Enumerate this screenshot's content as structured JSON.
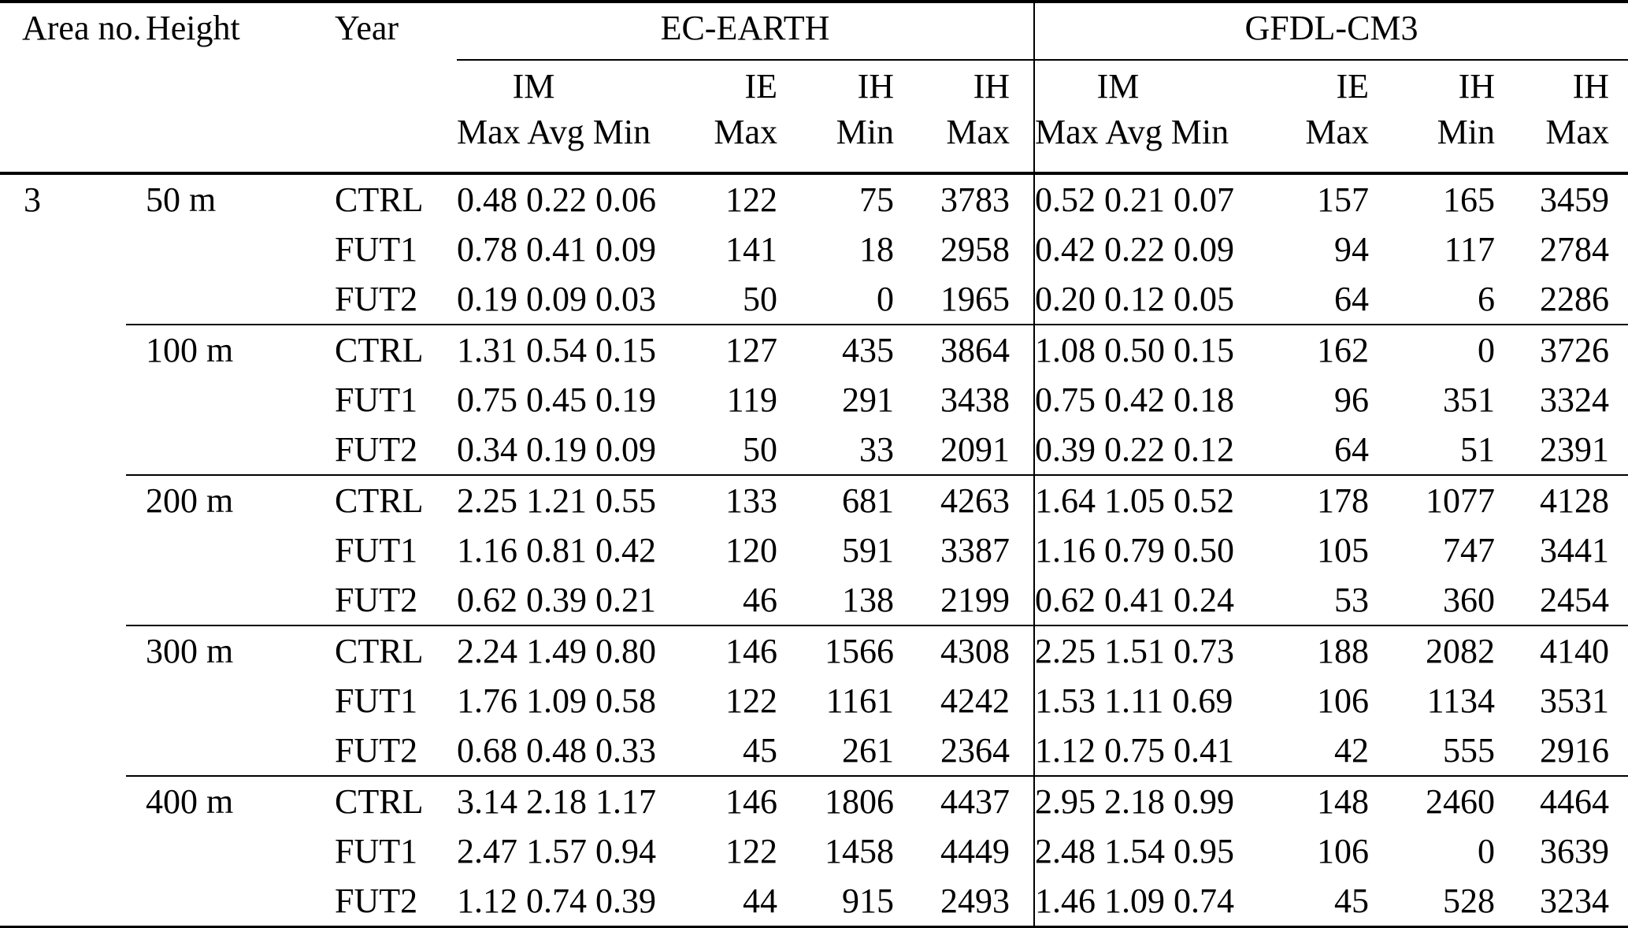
{
  "headers": {
    "area": "Area no.",
    "height": "Height",
    "year": "Year",
    "groups": {
      "ec": "EC-EARTH",
      "gf": "GFDL-CM3"
    },
    "sub": {
      "im": {
        "top": "IM",
        "bottom": "Max Avg Min"
      },
      "ie": {
        "top": "IE",
        "bottom": "Max"
      },
      "ih_min": {
        "top": "IH",
        "bottom": "Min"
      },
      "ih_max": {
        "top": "IH",
        "bottom": "Max"
      }
    }
  },
  "area_no": "3",
  "blocks": [
    {
      "height": "50 m",
      "rows": [
        {
          "year": "CTRL",
          "ec": {
            "im": "0.48 0.22 0.06",
            "ie": "122",
            "ih_min": "75",
            "ih_max": "3783"
          },
          "gf": {
            "im": "0.52 0.21 0.07",
            "ie": "157",
            "ih_min": "165",
            "ih_max": "3459"
          }
        },
        {
          "year": "FUT1",
          "ec": {
            "im": "0.78 0.41 0.09",
            "ie": "141",
            "ih_min": "18",
            "ih_max": "2958"
          },
          "gf": {
            "im": "0.42 0.22 0.09",
            "ie": "94",
            "ih_min": "117",
            "ih_max": "2784"
          }
        },
        {
          "year": "FUT2",
          "ec": {
            "im": "0.19 0.09 0.03",
            "ie": "50",
            "ih_min": "0",
            "ih_max": "1965"
          },
          "gf": {
            "im": "0.20 0.12 0.05",
            "ie": "64",
            "ih_min": "6",
            "ih_max": "2286"
          }
        }
      ]
    },
    {
      "height": "100 m",
      "rows": [
        {
          "year": "CTRL",
          "ec": {
            "im": "1.31 0.54 0.15",
            "ie": "127",
            "ih_min": "435",
            "ih_max": "3864"
          },
          "gf": {
            "im": "1.08 0.50 0.15",
            "ie": "162",
            "ih_min": "0",
            "ih_max": "3726"
          }
        },
        {
          "year": "FUT1",
          "ec": {
            "im": "0.75 0.45 0.19",
            "ie": "119",
            "ih_min": "291",
            "ih_max": "3438"
          },
          "gf": {
            "im": "0.75 0.42 0.18",
            "ie": "96",
            "ih_min": "351",
            "ih_max": "3324"
          }
        },
        {
          "year": "FUT2",
          "ec": {
            "im": "0.34 0.19 0.09",
            "ie": "50",
            "ih_min": "33",
            "ih_max": "2091"
          },
          "gf": {
            "im": "0.39 0.22 0.12",
            "ie": "64",
            "ih_min": "51",
            "ih_max": "2391"
          }
        }
      ]
    },
    {
      "height": "200 m",
      "rows": [
        {
          "year": "CTRL",
          "ec": {
            "im": "2.25 1.21 0.55",
            "ie": "133",
            "ih_min": "681",
            "ih_max": "4263"
          },
          "gf": {
            "im": "1.64 1.05 0.52",
            "ie": "178",
            "ih_min": "1077",
            "ih_max": "4128"
          }
        },
        {
          "year": "FUT1",
          "ec": {
            "im": "1.16 0.81 0.42",
            "ie": "120",
            "ih_min": "591",
            "ih_max": "3387"
          },
          "gf": {
            "im": "1.16 0.79 0.50",
            "ie": "105",
            "ih_min": "747",
            "ih_max": "3441"
          }
        },
        {
          "year": "FUT2",
          "ec": {
            "im": "0.62 0.39 0.21",
            "ie": "46",
            "ih_min": "138",
            "ih_max": "2199"
          },
          "gf": {
            "im": "0.62 0.41 0.24",
            "ie": "53",
            "ih_min": "360",
            "ih_max": "2454"
          }
        }
      ]
    },
    {
      "height": "300 m",
      "rows": [
        {
          "year": "CTRL",
          "ec": {
            "im": "2.24 1.49 0.80",
            "ie": "146",
            "ih_min": "1566",
            "ih_max": "4308"
          },
          "gf": {
            "im": "2.25 1.51 0.73",
            "ie": "188",
            "ih_min": "2082",
            "ih_max": "4140"
          }
        },
        {
          "year": "FUT1",
          "ec": {
            "im": "1.76 1.09 0.58",
            "ie": "122",
            "ih_min": "1161",
            "ih_max": "4242"
          },
          "gf": {
            "im": "1.53 1.11 0.69",
            "ie": "106",
            "ih_min": "1134",
            "ih_max": "3531"
          }
        },
        {
          "year": "FUT2",
          "ec": {
            "im": "0.68 0.48 0.33",
            "ie": "45",
            "ih_min": "261",
            "ih_max": "2364"
          },
          "gf": {
            "im": "1.12 0.75 0.41",
            "ie": "42",
            "ih_min": "555",
            "ih_max": "2916"
          }
        }
      ]
    },
    {
      "height": "400 m",
      "rows": [
        {
          "year": "CTRL",
          "ec": {
            "im": "3.14 2.18 1.17",
            "ie": "146",
            "ih_min": "1806",
            "ih_max": "4437"
          },
          "gf": {
            "im": "2.95 2.18 0.99",
            "ie": "148",
            "ih_min": "2460",
            "ih_max": "4464"
          }
        },
        {
          "year": "FUT1",
          "ec": {
            "im": "2.47 1.57 0.94",
            "ie": "122",
            "ih_min": "1458",
            "ih_max": "4449"
          },
          "gf": {
            "im": "2.48 1.54 0.95",
            "ie": "106",
            "ih_min": "0",
            "ih_max": "3639"
          }
        },
        {
          "year": "FUT2",
          "ec": {
            "im": "1.12 0.74 0.39",
            "ie": "44",
            "ih_min": "915",
            "ih_max": "2493"
          },
          "gf": {
            "im": "1.46 1.09 0.74",
            "ie": "45",
            "ih_min": "528",
            "ih_max": "3234"
          }
        }
      ]
    }
  ]
}
